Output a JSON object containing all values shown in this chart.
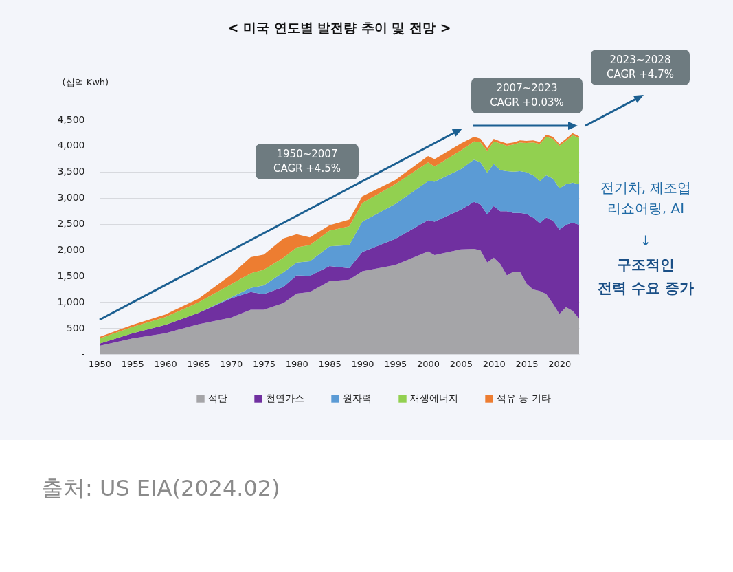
{
  "chart_data": {
    "type": "area",
    "stacked": true,
    "title": "< 미국 연도별 발전량 추이 및 전망 >",
    "ylabel": "(십억 Kwh)",
    "x": [
      1950,
      1955,
      1960,
      1965,
      1970,
      1973,
      1975,
      1978,
      1980,
      1982,
      1985,
      1988,
      1990,
      1995,
      2000,
      2001,
      2005,
      2007,
      2008,
      2009,
      2010,
      2011,
      2012,
      2013,
      2014,
      2015,
      2016,
      2017,
      2018,
      2019,
      2020,
      2021,
      2022,
      2023
    ],
    "series": [
      {
        "name": "석탄",
        "color": "#a5a5a8",
        "values": [
          160,
          300,
          400,
          570,
          700,
          850,
          850,
          980,
          1160,
          1190,
          1400,
          1430,
          1590,
          1710,
          1970,
          1900,
          2010,
          2020,
          1990,
          1760,
          1850,
          1730,
          1510,
          1580,
          1580,
          1350,
          1240,
          1210,
          1150,
          970,
          770,
          900,
          830,
          680
        ]
      },
      {
        "name": "천연가스",
        "color": "#7030a0",
        "values": [
          40,
          100,
          160,
          220,
          370,
          340,
          300,
          310,
          350,
          310,
          290,
          220,
          370,
          500,
          600,
          640,
          760,
          900,
          880,
          920,
          990,
          1010,
          1230,
          1130,
          1130,
          1340,
          1380,
          1300,
          1470,
          1590,
          1620,
          1580,
          1690,
          1800
        ]
      },
      {
        "name": "원자력",
        "color": "#5b9bd5",
        "values": [
          0,
          0,
          0,
          0,
          20,
          80,
          170,
          280,
          250,
          280,
          380,
          440,
          580,
          670,
          750,
          770,
          780,
          810,
          810,
          800,
          810,
          790,
          770,
          790,
          800,
          800,
          810,
          810,
          810,
          810,
          790,
          780,
          770,
          780
        ]
      },
      {
        "name": "재생에너지",
        "color": "#92d050",
        "values": [
          100,
          120,
          150,
          200,
          250,
          280,
          300,
          280,
          290,
          310,
          300,
          360,
          360,
          380,
          360,
          290,
          360,
          350,
          380,
          420,
          430,
          510,
          490,
          520,
          550,
          560,
          630,
          710,
          740,
          760,
          820,
          830,
          910,
          890
        ]
      },
      {
        "name": "석유 등 기타",
        "color": "#ed7d31",
        "values": [
          30,
          40,
          50,
          70,
          180,
          310,
          290,
          370,
          250,
          150,
          100,
          130,
          130,
          80,
          120,
          140,
          130,
          90,
          70,
          60,
          50,
          40,
          40,
          40,
          40,
          40,
          40,
          40,
          40,
          40,
          30,
          40,
          40,
          30
        ]
      }
    ],
    "xlim": [
      1950,
      2023
    ],
    "xticks": [
      1950,
      1955,
      1960,
      1965,
      1970,
      1975,
      1980,
      1985,
      1990,
      1995,
      2000,
      2005,
      2010,
      2015,
      2020
    ],
    "ylim": [
      0,
      4500
    ],
    "yticks": [
      {
        "value": 0,
        "label": "-"
      },
      {
        "value": 500,
        "label": "500"
      },
      {
        "value": 1000,
        "label": "1,000"
      },
      {
        "value": 1500,
        "label": "1,500"
      },
      {
        "value": 2000,
        "label": "2,000"
      },
      {
        "value": 2500,
        "label": "2,500"
      },
      {
        "value": 3000,
        "label": "3,000"
      },
      {
        "value": 3500,
        "label": "3,500"
      },
      {
        "value": 4000,
        "label": "4,000"
      },
      {
        "value": 4500,
        "label": "4,500"
      }
    ],
    "grid": "y",
    "legend": "bottom",
    "annotations": [
      "1950~2007\nCAGR +4.5%",
      "2007~2023\nCAGR +0.03%",
      "2023~2028\nCAGR +4.7%",
      "전기차, 제조업\n리쇼어링, AI",
      "↓",
      "구조적인\n전력 수요 증가",
      "출처: US EIA(2024.02)"
    ]
  }
}
